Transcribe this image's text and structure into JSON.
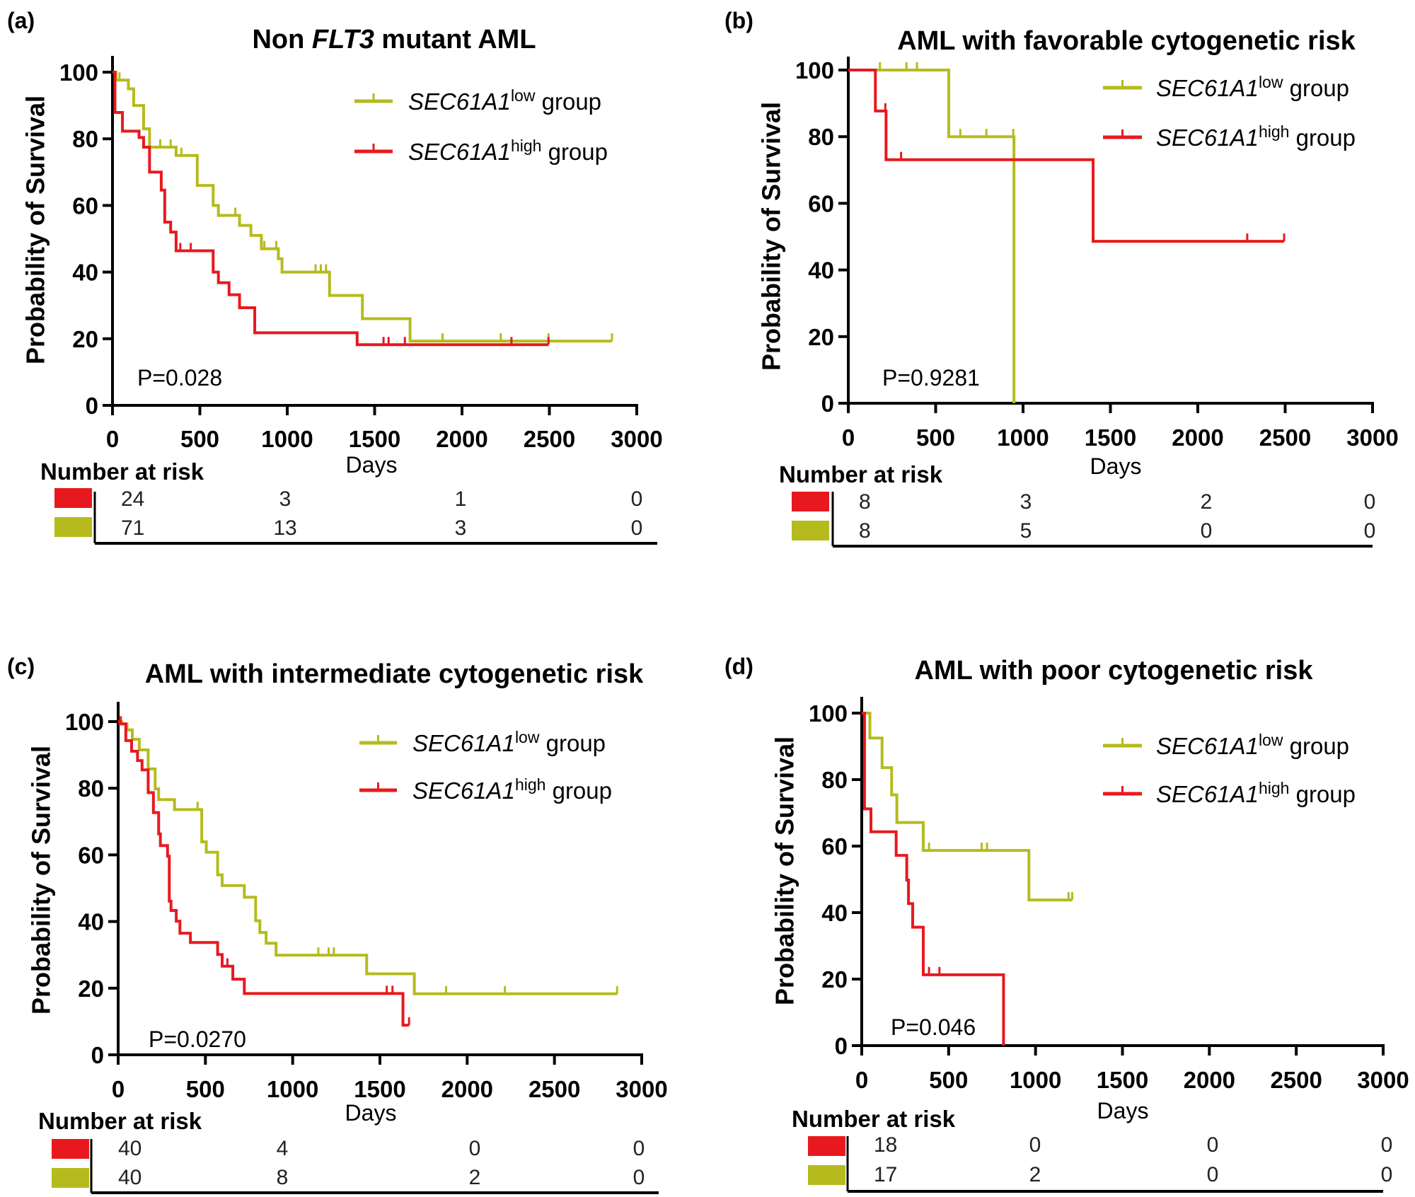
{
  "chart_data": [
    {
      "panel_label": "(a)",
      "type": "line",
      "title_parts": [
        {
          "text": "Non ",
          "italic": false
        },
        {
          "text": "FLT3",
          "italic": true
        },
        {
          "text": " mutant AML",
          "italic": false
        }
      ],
      "xlabel": "Days",
      "ylabel": "Probability of Survival",
      "xlim": [
        0,
        3000
      ],
      "ylim": [
        0,
        100
      ],
      "xticks": [
        0,
        500,
        1000,
        1500,
        2000,
        2500,
        3000
      ],
      "yticks": [
        0,
        20,
        40,
        60,
        80,
        100
      ],
      "p_value": "P=0.028",
      "series": [
        {
          "legend": {
            "gene": "SEC61A1",
            "sup": "low",
            "suffix": " group"
          },
          "color": "#b5bb1d",
          "steps": [
            [
              20,
              97.6
            ],
            [
              91,
              95
            ],
            [
              121,
              90
            ],
            [
              178,
              83
            ],
            [
              212,
              77.5
            ],
            [
              364,
              75
            ],
            [
              485,
              66
            ],
            [
              576,
              60
            ],
            [
              606,
              57
            ],
            [
              727,
              54
            ],
            [
              792,
              51
            ],
            [
              852,
              47
            ],
            [
              949,
              44
            ],
            [
              970,
              40
            ],
            [
              1242,
              33
            ],
            [
              1430,
              26
            ],
            [
              1703,
              19.3
            ]
          ],
          "censored": [
            40,
            273,
            333,
            394,
            703,
            727,
            869,
            937,
            1162,
            1192,
            1222,
            1889,
            2222,
            2495,
            2858
          ],
          "end": 2858
        },
        {
          "legend": {
            "gene": "SEC61A1",
            "sup": "high",
            "suffix": " group"
          },
          "color": "#e8191e",
          "steps": [
            [
              14,
              87.9
            ],
            [
              57,
              82.3
            ],
            [
              152,
              80.4
            ],
            [
              178,
              77.5
            ],
            [
              212,
              70
            ],
            [
              279,
              64.6
            ],
            [
              299,
              55
            ],
            [
              333,
              52
            ],
            [
              364,
              46.4
            ],
            [
              576,
              40
            ],
            [
              606,
              36.8
            ],
            [
              667,
              33.2
            ],
            [
              727,
              29.3
            ],
            [
              814,
              21.8
            ],
            [
              1400,
              18.2
            ]
          ],
          "censored": [
            388,
            448,
            1551,
            1580,
            1673,
            2283,
            2495
          ],
          "end": 2495
        }
      ],
      "risk_table": {
        "title": "Number at risk",
        "rows": [
          {
            "color": "#e8191e",
            "values": [
              "24",
              "3",
              "1",
              "0"
            ]
          },
          {
            "color": "#b5bb1d",
            "values": [
              "71",
              "13",
              "3",
              "0"
            ]
          }
        ]
      }
    },
    {
      "panel_label": "(b)",
      "type": "line",
      "title_parts": [
        {
          "text": "AML with favorable cytogenetic risk",
          "italic": false
        }
      ],
      "xlabel": "Days",
      "ylabel": "Probability of Survival",
      "xlim": [
        0,
        3000
      ],
      "ylim": [
        0,
        100
      ],
      "xticks": [
        0,
        500,
        1000,
        1500,
        2000,
        2500,
        3000
      ],
      "yticks": [
        0,
        20,
        40,
        60,
        80,
        100
      ],
      "p_value": "P=0.9281",
      "series": [
        {
          "legend": {
            "gene": "SEC61A1",
            "sup": "low",
            "suffix": " group"
          },
          "color": "#b5bb1d",
          "steps": [
            [
              575,
              80
            ],
            [
              948,
              0
            ]
          ],
          "censored": [
            181,
            333,
            393,
            641,
            790,
            944
          ],
          "end": 948
        },
        {
          "legend": {
            "gene": "SEC61A1",
            "sup": "high",
            "suffix": " group"
          },
          "color": "#e8191e",
          "steps": [
            [
              155,
              87.7
            ],
            [
              216,
              73.1
            ],
            [
              1401,
              48.6
            ]
          ],
          "censored": [
            212,
            302,
            2283,
            2494
          ],
          "end": 2494
        }
      ],
      "risk_table": {
        "title": "Number at risk",
        "rows": [
          {
            "color": "#e8191e",
            "values": [
              "8",
              "3",
              "2",
              "0"
            ]
          },
          {
            "color": "#b5bb1d",
            "values": [
              "8",
              "5",
              "0",
              "0"
            ]
          }
        ]
      }
    },
    {
      "panel_label": "(c)",
      "type": "line",
      "title_parts": [
        {
          "text": "AML with intermediate cytogenetic risk",
          "italic": false
        }
      ],
      "xlabel": "Days",
      "ylabel": "Probability of Survival",
      "xlim": [
        0,
        3000
      ],
      "ylim": [
        0,
        100
      ],
      "xticks": [
        0,
        500,
        1000,
        1500,
        2000,
        2500,
        3000
      ],
      "yticks": [
        0,
        20,
        40,
        60,
        80,
        100
      ],
      "p_value": "P=0.0270",
      "series": [
        {
          "legend": {
            "gene": "SEC61A1",
            "sup": "low",
            "suffix": " group"
          },
          "color": "#b5bb1d",
          "steps": [
            [
              20,
              99.3
            ],
            [
              51,
              97.5
            ],
            [
              81,
              94.7
            ],
            [
              121,
              91.5
            ],
            [
              172,
              85.8
            ],
            [
              212,
              79.8
            ],
            [
              232,
              76.6
            ],
            [
              323,
              73.6
            ],
            [
              479,
              63.9
            ],
            [
              505,
              60.8
            ],
            [
              570,
              54
            ],
            [
              596,
              50.8
            ],
            [
              723,
              47.3
            ],
            [
              788,
              40.2
            ],
            [
              812,
              36.7
            ],
            [
              848,
              33.5
            ],
            [
              905,
              29.9
            ],
            [
              1424,
              24.3
            ],
            [
              1697,
              18.3
            ]
          ],
          "censored": [
            455,
            1147,
            1206,
            1236,
            1879,
            2216,
            2859
          ],
          "end": 2859
        },
        {
          "legend": {
            "gene": "SEC61A1",
            "sup": "high",
            "suffix": " group"
          },
          "color": "#e8191e",
          "steps": [
            [
              10,
              99.3
            ],
            [
              44,
              94.3
            ],
            [
              77,
              91.1
            ],
            [
              111,
              88.3
            ],
            [
              137,
              85.5
            ],
            [
              172,
              78.7
            ],
            [
              202,
              72.7
            ],
            [
              232,
              66.3
            ],
            [
              242,
              62.8
            ],
            [
              283,
              59.6
            ],
            [
              293,
              46.1
            ],
            [
              303,
              43.3
            ],
            [
              333,
              40.1
            ],
            [
              354,
              36.5
            ],
            [
              414,
              33.7
            ],
            [
              570,
              30.1
            ],
            [
              596,
              26.6
            ],
            [
              657,
              22.7
            ],
            [
              723,
              18.4
            ],
            [
              1632,
              8.9
            ]
          ],
          "censored": [
            15,
            626,
            1539,
            1572,
            1667
          ],
          "end": 1667
        }
      ],
      "risk_table": {
        "title": "Number at risk",
        "rows": [
          {
            "color": "#e8191e",
            "values": [
              "40",
              "4",
              "0",
              "0"
            ]
          },
          {
            "color": "#b5bb1d",
            "values": [
              "40",
              "8",
              "2",
              "0"
            ]
          }
        ]
      }
    },
    {
      "panel_label": "(d)",
      "type": "line",
      "title_parts": [
        {
          "text": "AML with poor cytogenetic risk",
          "italic": false
        }
      ],
      "xlabel": "Days",
      "ylabel": "Probability of Survival",
      "xlim": [
        0,
        3000
      ],
      "ylim": [
        0,
        100
      ],
      "xticks": [
        0,
        500,
        1000,
        1500,
        2000,
        2500,
        3000
      ],
      "yticks": [
        0,
        20,
        40,
        60,
        80,
        100
      ],
      "p_value": "P=0.046",
      "series": [
        {
          "legend": {
            "gene": "SEC61A1",
            "sup": "low",
            "suffix": " group"
          },
          "color": "#b5bb1d",
          "steps": [
            [
              47,
              92.5
            ],
            [
              117,
              83.6
            ],
            [
              172,
              75.4
            ],
            [
              202,
              67.1
            ],
            [
              354,
              58.7
            ],
            [
              962,
              43.8
            ]
          ],
          "censored": [
            387,
            690,
            721,
            1190,
            1211
          ],
          "end": 1211
        },
        {
          "legend": {
            "gene": "SEC61A1",
            "sup": "high",
            "suffix": " group"
          },
          "color": "#e8191e",
          "steps": [
            [
              16,
              71.2
            ],
            [
              53,
              64.3
            ],
            [
              198,
              57.2
            ],
            [
              259,
              49.8
            ],
            [
              269,
              42.7
            ],
            [
              293,
              35.6
            ],
            [
              354,
              21.3
            ],
            [
              816,
              0
            ]
          ],
          "censored": [
            387,
            447
          ],
          "end": 816
        }
      ],
      "risk_table": {
        "title": "Number at risk",
        "rows": [
          {
            "color": "#e8191e",
            "values": [
              "18",
              "0",
              "0",
              "0"
            ]
          },
          {
            "color": "#b5bb1d",
            "values": [
              "17",
              "2",
              "0",
              "0"
            ]
          }
        ]
      }
    }
  ]
}
